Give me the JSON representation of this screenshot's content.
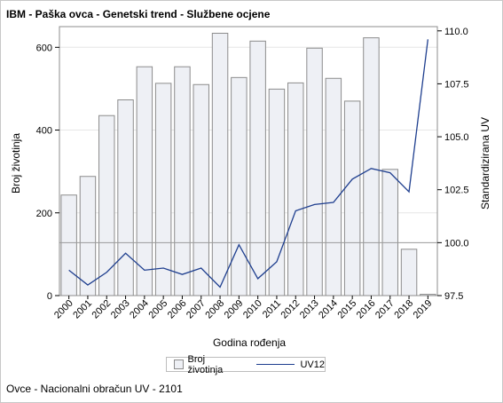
{
  "title": "IBM - Paška ovca - Genetski trend - Službene ocjene",
  "footnote": "Ovce - Nacionalni obračun UV - 2101",
  "legend": {
    "bar_label": "Broj životinja",
    "line_label": "UV12"
  },
  "colors": {
    "bar_fill": "#eef0f5",
    "bar_stroke": "#8c8c8c",
    "line": "#1f3f8f",
    "grid": "#e6e6e6",
    "refline": "#9a9a9a"
  },
  "chart_data": {
    "type": "bar",
    "categories": [
      "2000",
      "2001",
      "2002",
      "2003",
      "2004",
      "2005",
      "2006",
      "2007",
      "2008",
      "2009",
      "2010",
      "2011",
      "2012",
      "2013",
      "2014",
      "2015",
      "2016",
      "2017",
      "2018",
      "2019"
    ],
    "series": [
      {
        "name": "Broj životinja",
        "type": "bar",
        "axis": "left",
        "values": [
          243,
          288,
          435,
          473,
          553,
          513,
          553,
          510,
          634,
          527,
          615,
          499,
          514,
          598,
          525,
          470,
          623,
          305,
          112,
          3
        ]
      },
      {
        "name": "UV12",
        "type": "line",
        "axis": "right",
        "values": [
          98.7,
          98.0,
          98.6,
          99.5,
          98.7,
          98.8,
          98.5,
          98.8,
          97.9,
          99.9,
          98.3,
          99.1,
          101.5,
          101.8,
          101.9,
          103.0,
          103.5,
          103.3,
          102.4,
          109.6
        ]
      }
    ],
    "xlabel": "Godina rođenja",
    "ylabel_left": "Broj životinja",
    "ylabel_right": "Standardizirana UV",
    "ylim_left": [
      0,
      650
    ],
    "yticks_left": [
      0,
      200,
      400,
      600
    ],
    "ylim_right": [
      97.5,
      110.2
    ],
    "yticks_right": [
      "97.5",
      "100.0",
      "102.5",
      "105.0",
      "107.5",
      "110.0"
    ],
    "reference_line": 100,
    "grid": true,
    "legend_position": "bottom"
  }
}
